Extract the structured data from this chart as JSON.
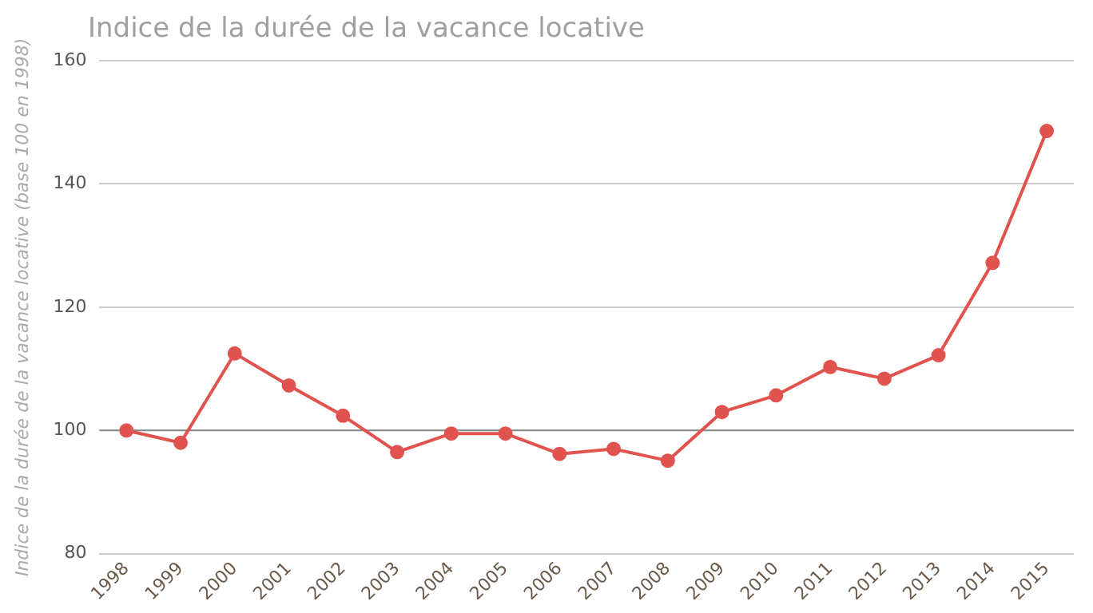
{
  "chart_data": {
    "type": "line",
    "title": "Indice de la durée de la vacance locative",
    "ylabel": "Indice de la durée de la vacance locative (base 100 en 1998)",
    "categories": [
      "1998",
      "1999",
      "2000",
      "2001",
      "2002",
      "2003",
      "2004",
      "2005",
      "2006",
      "2007",
      "2008",
      "2009",
      "2010",
      "2011",
      "2012",
      "2013",
      "2014",
      "2015"
    ],
    "series": [
      {
        "color": "#e0534f",
        "values": [
          100,
          98,
          112.5,
          107.3,
          102.4,
          96.5,
          99.5,
          99.5,
          96.2,
          97,
          95.1,
          103,
          105.7,
          110.3,
          108.4,
          112.2,
          127.2,
          148.6
        ]
      }
    ],
    "ylim": [
      80,
      160
    ],
    "yticks": [
      80,
      100,
      120,
      140,
      160
    ],
    "grid": "y",
    "legend": false,
    "marker": "circle",
    "line_style": "solid",
    "ref_lines": [
      {
        "axis": "y",
        "value": 100,
        "color": "#888888"
      }
    ]
  }
}
